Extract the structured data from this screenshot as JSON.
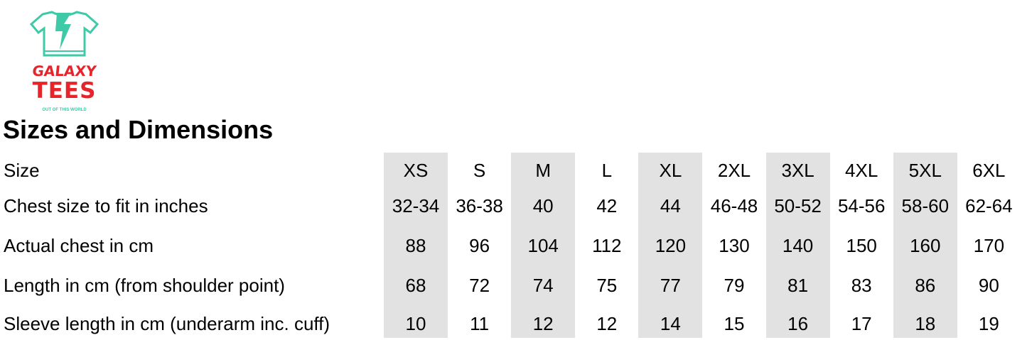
{
  "logo": {
    "line1": "GALAXY",
    "line2": "TEES",
    "tagline": "OUT OF THIS WORLD",
    "icon": "tshirt-lightning-icon",
    "colors": {
      "shirt": "#3ec9a7",
      "text": "#e8242b"
    }
  },
  "title": "Sizes and Dimensions",
  "table": {
    "shade_color": "#e2e2e2",
    "rows": [
      {
        "label": "Size",
        "values": [
          "XS",
          "S",
          "M",
          "L",
          "XL",
          "2XL",
          "3XL",
          "4XL",
          "5XL",
          "6XL"
        ]
      },
      {
        "label": "Chest size to fit in inches",
        "values": [
          "32-34",
          "36-38",
          "40",
          "42",
          "44",
          "46-48",
          "50-52",
          "54-56",
          "58-60",
          "62-64"
        ]
      },
      {
        "label": "Actual chest in cm",
        "values": [
          "88",
          "96",
          "104",
          "112",
          "120",
          "130",
          "140",
          "150",
          "160",
          "170"
        ]
      },
      {
        "label": "Length in cm (from shoulder point)",
        "values": [
          "68",
          "72",
          "74",
          "75",
          "77",
          "79",
          "81",
          "83",
          "86",
          "90"
        ]
      },
      {
        "label": "Sleeve length in cm (underarm inc. cuff)",
        "values": [
          "10",
          "11",
          "12",
          "12",
          "14",
          "15",
          "16",
          "17",
          "18",
          "19"
        ]
      }
    ]
  }
}
